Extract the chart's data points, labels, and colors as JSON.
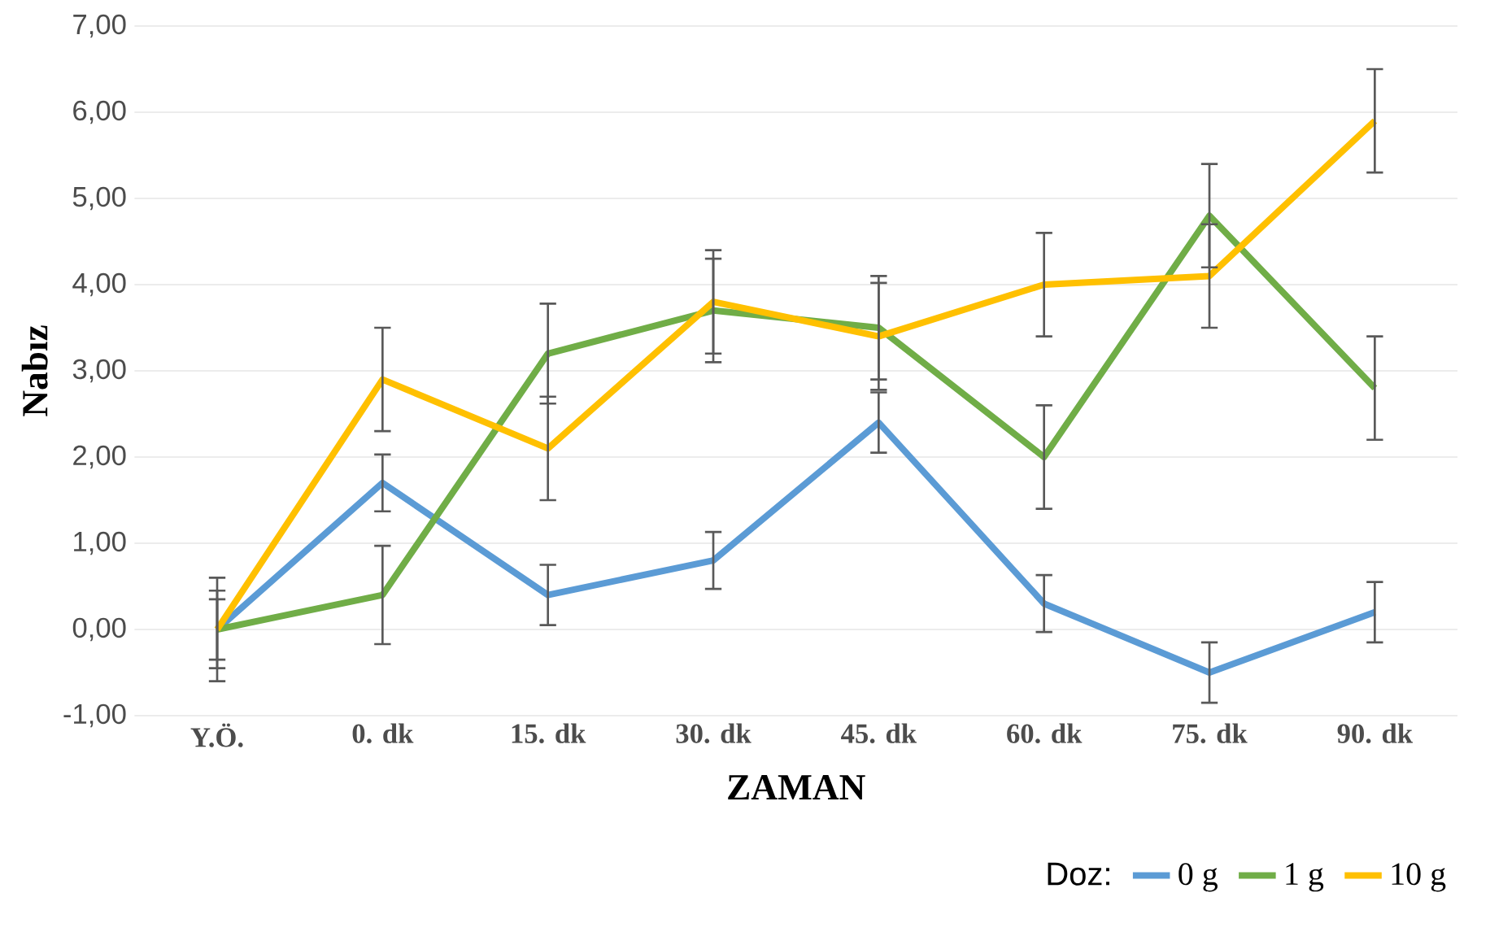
{
  "chart_data": {
    "type": "line",
    "xlabel": "ZAMAN",
    "ylabel": "Nabız",
    "legend_title": "Doz:",
    "categories": [
      "Y.Ö.",
      "0. dk",
      "15. dk",
      "30. dk",
      "45. dk",
      "60. dk",
      "75. dk",
      "90. dk"
    ],
    "series": [
      {
        "name": "0 g",
        "color": "#5b9bd5",
        "values": [
          0,
          1.7,
          0.4,
          0.8,
          2.4,
          0.3,
          -0.5,
          0.2
        ],
        "errors": [
          0.35,
          0.33,
          0.35,
          0.33,
          0.35,
          0.33,
          0.35,
          0.35
        ]
      },
      {
        "name": "1 g",
        "color": "#70ad47",
        "values": [
          0,
          0.4,
          3.2,
          3.7,
          3.5,
          2.0,
          4.8,
          2.8
        ],
        "errors": [
          0.6,
          0.57,
          0.58,
          0.6,
          0.6,
          0.6,
          0.6,
          0.6
        ]
      },
      {
        "name": "10 g",
        "color": "#ffc000",
        "values": [
          0,
          2.9,
          2.1,
          3.8,
          3.4,
          4.0,
          4.1,
          5.9
        ],
        "errors": [
          0.45,
          0.6,
          0.6,
          0.6,
          0.62,
          0.6,
          0.6,
          0.6
        ]
      }
    ],
    "ylim": [
      -1,
      7
    ],
    "yticks": [
      {
        "value": -1,
        "label": "-1,00"
      },
      {
        "value": 0,
        "label": "0,00"
      },
      {
        "value": 1,
        "label": "1,00"
      },
      {
        "value": 2,
        "label": "2,00"
      },
      {
        "value": 3,
        "label": "3,00"
      },
      {
        "value": 4,
        "label": "4,00"
      },
      {
        "value": 5,
        "label": "5,00"
      },
      {
        "value": 6,
        "label": "6,00"
      },
      {
        "value": 7,
        "label": "7,00"
      }
    ],
    "grid": "y",
    "legend": "bottom right"
  }
}
